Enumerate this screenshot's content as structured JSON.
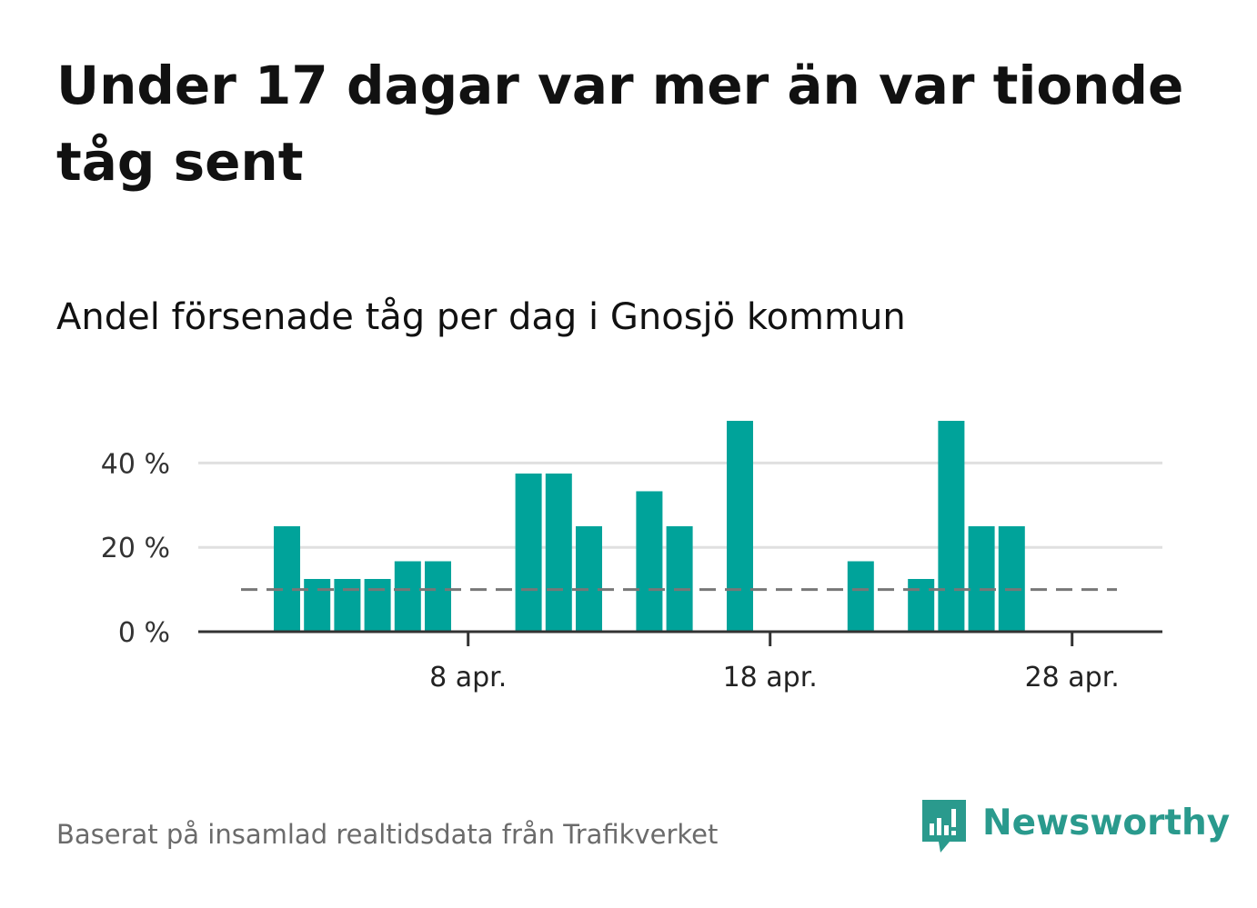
{
  "headline": "Under 17 dagar var mer än var tionde tåg sent",
  "subtitle": "Andel försenade tåg per dag i Gnosjö kommun",
  "footer_note": "Baserat på insamlad realtidsdata från Trafikverket",
  "logo": {
    "text": "Newsworthy",
    "icon": "bar-chart-speech-bubble-icon",
    "color": "#2a9a8d"
  },
  "colors": {
    "bar": "#00a39a",
    "grid": "#e0e0e0",
    "axis": "#333333",
    "reference": "#777777"
  },
  "chart_data": {
    "type": "bar",
    "x": [
      "2 apr.",
      "3 apr.",
      "4 apr.",
      "5 apr.",
      "6 apr.",
      "7 apr.",
      "8 apr.",
      "9 apr.",
      "10 apr.",
      "11 apr.",
      "12 apr.",
      "13 apr.",
      "14 apr.",
      "15 apr.",
      "16 apr.",
      "17 apr.",
      "18 apr.",
      "19 apr.",
      "20 apr.",
      "21 apr.",
      "22 apr.",
      "23 apr.",
      "24 apr.",
      "25 apr.",
      "26 apr.",
      "27 apr.",
      "28 apr.",
      "29 apr."
    ],
    "series": [
      {
        "values": [
          25,
          12.5,
          12.5,
          12.5,
          16.7,
          16.7,
          0,
          0,
          37.5,
          37.5,
          25,
          0,
          33.3,
          25,
          0,
          50,
          0,
          0,
          0,
          16.7,
          0,
          12.5,
          50,
          25,
          25,
          0,
          0,
          0
        ]
      }
    ],
    "reference_line": {
      "value": 10,
      "style": "dashed"
    },
    "y_ticks": [
      0,
      20,
      40
    ],
    "y_tick_labels": [
      "0 %",
      "20 %",
      "40 %"
    ],
    "x_ticks": [
      "8 apr.",
      "18 apr.",
      "28 apr."
    ],
    "ylim": [
      0,
      50
    ],
    "grid": true,
    "xlabel": "",
    "ylabel": ""
  }
}
